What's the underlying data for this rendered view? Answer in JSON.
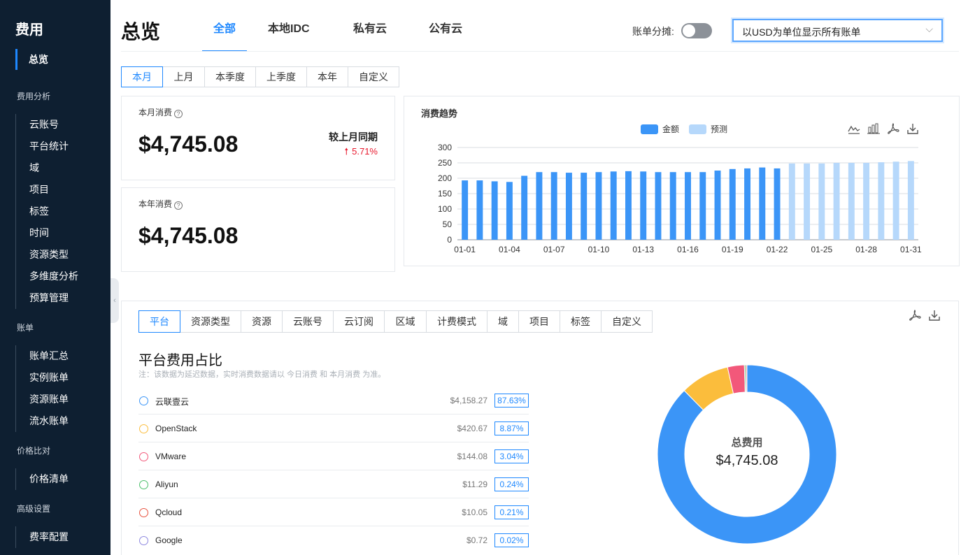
{
  "sidebar": {
    "title": "费用",
    "overview": "总览",
    "groups": [
      {
        "label": "费用分析",
        "items": [
          "云账号",
          "平台统计",
          "域",
          "项目",
          "标签",
          "时间",
          "资源类型",
          "多维度分析",
          "预算管理"
        ]
      },
      {
        "label": "账单",
        "items": [
          "账单汇总",
          "实例账单",
          "资源账单",
          "流水账单"
        ]
      },
      {
        "label": "价格比对",
        "items": [
          "价格清单"
        ]
      },
      {
        "label": "高级设置",
        "items": [
          "费率配置"
        ]
      }
    ]
  },
  "header": {
    "title": "总览",
    "tabs": [
      "全部",
      "本地IDC",
      "私有云",
      "公有云"
    ],
    "active_tab": 0,
    "bill_split_label": "账单分摊:",
    "bill_split_on": false,
    "currency_select": "以USD为单位显示所有账单"
  },
  "period": {
    "options": [
      "本月",
      "上月",
      "本季度",
      "上季度",
      "本年",
      "自定义"
    ],
    "active": 0
  },
  "month_card": {
    "label": "本月消费",
    "value": "$4,745.08",
    "compare_label": "较上月同期",
    "compare_value": "5.71%",
    "trend": "up"
  },
  "year_card": {
    "label": "本年消费",
    "value": "$4,745.08"
  },
  "trend_chart": {
    "title": "消费趋势",
    "tools": [
      "line-chart-icon",
      "bar-chart-icon",
      "pdf-icon",
      "download-icon"
    ]
  },
  "chart_data": {
    "type": "bar",
    "title": "消费趋势",
    "categories": [
      "01-01",
      "01-02",
      "01-03",
      "01-04",
      "01-05",
      "01-06",
      "01-07",
      "01-08",
      "01-09",
      "01-10",
      "01-11",
      "01-12",
      "01-13",
      "01-14",
      "01-15",
      "01-16",
      "01-17",
      "01-18",
      "01-19",
      "01-20",
      "01-21",
      "01-22",
      "01-23",
      "01-24",
      "01-25",
      "01-26",
      "01-27",
      "01-28",
      "01-29",
      "01-30",
      "01-31"
    ],
    "tick_labels": [
      "01-01",
      "01-04",
      "01-07",
      "01-10",
      "01-13",
      "01-16",
      "01-19",
      "01-22",
      "01-25",
      "01-28",
      "01-31"
    ],
    "series": [
      {
        "name": "金额",
        "color": "#3b95f7",
        "values": [
          193,
          193,
          190,
          188,
          208,
          220,
          220,
          218,
          218,
          220,
          222,
          223,
          222,
          220,
          220,
          220,
          220,
          225,
          230,
          232,
          235,
          232,
          null,
          null,
          null,
          null,
          null,
          null,
          null,
          null,
          null
        ]
      },
      {
        "name": "预测",
        "color": "#b6d8fb",
        "values": [
          null,
          null,
          null,
          null,
          null,
          null,
          null,
          null,
          null,
          null,
          null,
          null,
          null,
          null,
          null,
          null,
          null,
          null,
          null,
          null,
          null,
          null,
          248,
          248,
          248,
          250,
          250,
          250,
          252,
          254,
          256
        ]
      }
    ],
    "ylim": [
      0,
      300
    ],
    "yticks": [
      0,
      50,
      100,
      150,
      200,
      250,
      300
    ],
    "grid": true,
    "legend_position": "top"
  },
  "breakdown": {
    "tabs": [
      "平台",
      "资源类型",
      "资源",
      "云账号",
      "云订阅",
      "区域",
      "计费模式",
      "域",
      "项目",
      "标签",
      "自定义"
    ],
    "active_tab": 0,
    "title": "平台费用占比",
    "note": "注：该数据为延迟数据，实时消费数据请以 今日消费 和 本月消费 为准。",
    "rows": [
      {
        "name": "云联壹云",
        "amount": "$4,158.27",
        "percent": "87.63%",
        "color": "#3b95f7",
        "value": 4158.27
      },
      {
        "name": "OpenStack",
        "amount": "$420.67",
        "percent": "8.87%",
        "color": "#fbbd3c",
        "value": 420.67
      },
      {
        "name": "VMware",
        "amount": "$144.08",
        "percent": "3.04%",
        "color": "#f2587a",
        "value": 144.08
      },
      {
        "name": "Aliyun",
        "amount": "$11.29",
        "percent": "0.24%",
        "color": "#4cbf6b",
        "value": 11.29
      },
      {
        "name": "Qcloud",
        "amount": "$10.05",
        "percent": "0.21%",
        "color": "#e8533f",
        "value": 10.05
      },
      {
        "name": "Google",
        "amount": "$0.72",
        "percent": "0.02%",
        "color": "#8e88e0",
        "value": 0.72
      }
    ],
    "total_label": "总费用",
    "total_value": "$4,745.08"
  }
}
